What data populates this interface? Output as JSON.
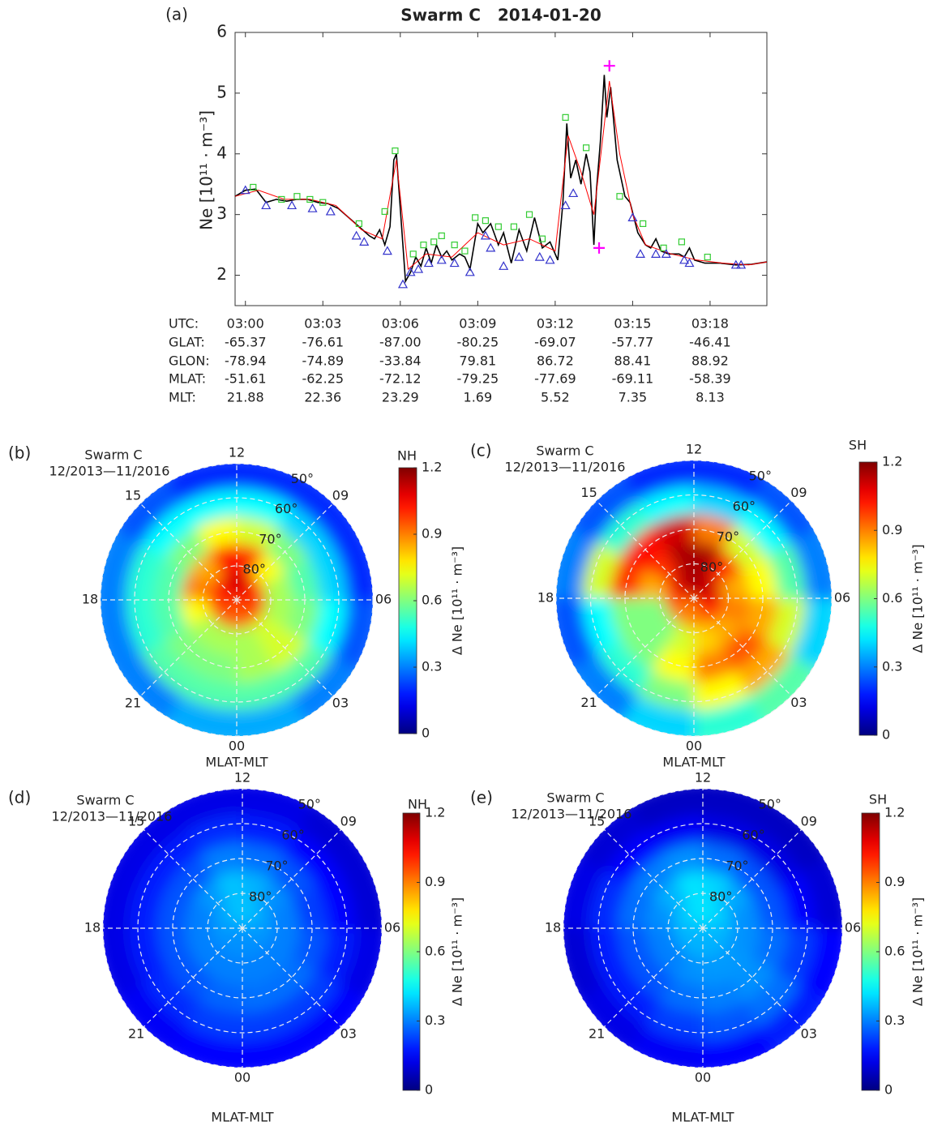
{
  "chart_data": [
    {
      "type": "line",
      "panel_label": "(a)",
      "title": "Swarm C   2014-01-20",
      "ylabel": "Ne [10¹¹ · m⁻³]",
      "xlim": [
        179.6,
        200.2
      ],
      "ylim": [
        1.5,
        6
      ],
      "yticks": [
        2,
        3,
        4,
        5,
        6
      ],
      "xticks": [
        {
          "value": 180,
          "label": "03:00"
        },
        {
          "value": 183,
          "label": "03:03"
        },
        {
          "value": 186,
          "label": "03:06"
        },
        {
          "value": 189,
          "label": "03:09"
        },
        {
          "value": 192,
          "label": "03:12"
        },
        {
          "value": 195,
          "label": "03:15"
        },
        {
          "value": 198,
          "label": "03:18"
        }
      ],
      "table_labels": [
        "UTC:",
        "GLAT:",
        "GLON:",
        "MLAT:",
        "MLT:"
      ],
      "table_rows": [
        [
          "-65.37",
          "-76.61",
          "-87.00",
          "-80.25",
          "-69.07",
          "-57.77",
          "-46.41"
        ],
        [
          "-78.94",
          "-74.89",
          "-33.84",
          "79.81",
          "86.72",
          "88.41",
          "88.92"
        ],
        [
          "-51.61",
          "-62.25",
          "-72.12",
          "-79.25",
          "-77.69",
          "-69.11",
          "-58.39"
        ],
        [
          "21.88",
          "22.36",
          "23.29",
          "1.69",
          "5.52",
          "7.35",
          "8.13"
        ]
      ],
      "series": [
        {
          "color": "#000000",
          "marker": "line",
          "x": [
            179.6,
            180.0,
            180.4,
            180.8,
            181.2,
            181.6,
            182.0,
            182.4,
            182.8,
            183.2,
            183.6,
            184.0,
            184.4,
            184.8,
            185.0,
            185.2,
            185.4,
            185.6,
            185.75,
            185.85,
            185.95,
            186.1,
            186.2,
            186.4,
            186.6,
            186.8,
            187.0,
            187.2,
            187.4,
            187.6,
            187.8,
            188.0,
            188.3,
            188.5,
            188.7,
            189.0,
            189.2,
            189.5,
            189.8,
            190.0,
            190.3,
            190.6,
            190.9,
            191.2,
            191.5,
            191.8,
            192.1,
            192.3,
            192.45,
            192.6,
            192.8,
            193.0,
            193.2,
            193.35,
            193.5,
            193.6,
            193.75,
            193.9,
            194.0,
            194.15,
            194.4,
            194.7,
            194.9,
            195.2,
            195.5,
            195.7,
            195.9,
            196.1,
            196.4,
            196.8,
            197.0,
            197.2,
            197.4,
            197.8,
            198.4,
            199.0,
            199.6,
            200.2
          ],
          "values": [
            3.3,
            3.4,
            3.42,
            3.2,
            3.25,
            3.22,
            3.25,
            3.25,
            3.2,
            3.18,
            3.1,
            2.95,
            2.8,
            2.65,
            2.6,
            2.75,
            2.5,
            2.8,
            3.9,
            4.0,
            3.4,
            2.5,
            1.9,
            2.05,
            2.3,
            2.15,
            2.45,
            2.2,
            2.5,
            2.3,
            2.4,
            2.25,
            2.35,
            2.3,
            2.1,
            2.85,
            2.7,
            2.85,
            2.5,
            2.7,
            2.2,
            2.75,
            2.4,
            2.95,
            2.45,
            2.55,
            2.25,
            3.2,
            4.5,
            3.6,
            3.9,
            3.5,
            4.0,
            3.7,
            2.5,
            3.4,
            4.2,
            5.3,
            4.6,
            5.1,
            3.9,
            3.3,
            3.2,
            2.7,
            2.5,
            2.45,
            2.6,
            2.4,
            2.35,
            2.35,
            2.3,
            2.45,
            2.25,
            2.2,
            2.2,
            2.17,
            2.18,
            2.22
          ]
        },
        {
          "color": "#ff0000",
          "marker": "line",
          "x": [
            179.6,
            180.5,
            181.5,
            182.5,
            183.5,
            184.5,
            185.3,
            185.85,
            186.3,
            187.0,
            188.0,
            189.0,
            190.0,
            191.0,
            192.0,
            192.5,
            193.0,
            193.5,
            194.1,
            194.5,
            195.0,
            195.5,
            196.5,
            197.5,
            198.5,
            199.5,
            200.2
          ],
          "values": [
            3.3,
            3.4,
            3.25,
            3.25,
            3.15,
            2.75,
            2.6,
            3.9,
            2.1,
            2.35,
            2.3,
            2.7,
            2.5,
            2.6,
            2.4,
            4.3,
            3.7,
            3.0,
            5.2,
            4.0,
            3.0,
            2.5,
            2.35,
            2.25,
            2.2,
            2.17,
            2.22
          ]
        },
        {
          "color": "#33cc33",
          "marker": "square",
          "x": [
            180.3,
            181.4,
            182.0,
            182.5,
            183.0,
            184.4,
            185.4,
            185.8,
            186.5,
            186.9,
            187.3,
            187.6,
            188.1,
            188.5,
            188.9,
            189.3,
            189.8,
            190.4,
            191.0,
            191.5,
            192.4,
            193.2,
            194.5,
            195.4,
            196.2,
            196.9,
            197.9
          ],
          "values": [
            3.45,
            3.25,
            3.3,
            3.25,
            3.2,
            2.85,
            3.05,
            4.05,
            2.35,
            2.5,
            2.55,
            2.65,
            2.5,
            2.4,
            2.95,
            2.9,
            2.8,
            2.8,
            3.0,
            2.6,
            4.6,
            4.1,
            3.3,
            2.85,
            2.45,
            2.55,
            2.3
          ]
        },
        {
          "color": "#3333cc",
          "marker": "triangle",
          "x": [
            180.0,
            180.8,
            181.8,
            182.6,
            183.3,
            184.3,
            184.6,
            185.5,
            186.1,
            186.4,
            186.7,
            187.1,
            187.6,
            188.1,
            188.7,
            189.3,
            189.5,
            190.0,
            190.6,
            191.4,
            191.8,
            192.4,
            192.7,
            195.0,
            195.3,
            195.9,
            196.3,
            197.0,
            197.2,
            199.0,
            199.2
          ],
          "values": [
            3.4,
            3.15,
            3.15,
            3.1,
            3.05,
            2.65,
            2.55,
            2.4,
            1.85,
            2.05,
            2.1,
            2.2,
            2.25,
            2.2,
            2.05,
            2.65,
            2.45,
            2.15,
            2.3,
            2.3,
            2.25,
            3.15,
            3.35,
            2.95,
            2.35,
            2.35,
            2.35,
            2.25,
            2.2,
            2.17,
            2.17
          ]
        },
        {
          "color": "#ff00ff",
          "marker": "plus",
          "x": [
            194.1,
            193.7
          ],
          "values": [
            5.45,
            2.45
          ]
        }
      ]
    },
    {
      "type": "polar_heatmap",
      "panel_label": "(b)",
      "title": "Swarm C",
      "subtitle": "12/2013—11/2016",
      "hemisphere": "NH",
      "xlabel": "MLAT-MLT",
      "theta_ticks": [
        12,
        {
          "value": 9,
          "label": "09"
        },
        {
          "value": 6,
          "label": "06"
        },
        {
          "value": 3,
          "label": "03"
        },
        {
          "value": 0,
          "label": "00"
        },
        21,
        18,
        15
      ],
      "r_ticks": [
        {
          "value": 80,
          "label": "80°"
        },
        {
          "value": 70,
          "label": "70°"
        },
        {
          "value": 60,
          "label": "60°"
        },
        {
          "value": 50,
          "label": "50°"
        }
      ],
      "rlim": [
        90,
        50
      ],
      "mlat_bins": [
        50,
        58,
        66,
        74,
        82,
        90
      ],
      "mlt_bins": [
        0,
        2,
        4,
        6,
        8,
        10,
        12,
        14,
        16,
        18,
        20,
        22,
        24
      ],
      "values": [
        [
          0.35,
          0.3,
          0.25,
          0.2,
          0.2,
          0.2,
          0.2,
          0.25,
          0.3,
          0.3,
          0.3,
          0.35
        ],
        [
          0.55,
          0.55,
          0.45,
          0.4,
          0.4,
          0.45,
          0.45,
          0.45,
          0.5,
          0.5,
          0.55,
          0.55
        ],
        [
          0.65,
          0.7,
          0.6,
          0.55,
          0.6,
          0.7,
          0.75,
          0.6,
          0.55,
          0.55,
          0.6,
          0.6
        ],
        [
          0.65,
          0.7,
          0.65,
          0.65,
          0.75,
          1.0,
          1.05,
          0.85,
          0.9,
          0.75,
          0.65,
          0.65
        ],
        [
          0.95,
          0.95,
          1.0,
          1.0,
          1.05,
          1.1,
          1.1,
          1.05,
          1.0,
          1.0,
          0.95,
          0.95
        ]
      ],
      "clim": [
        0,
        1.2
      ],
      "cticks": [
        0,
        0.3,
        0.6,
        0.9,
        1.2
      ],
      "colorbar_label": "Δ Ne [10¹¹ · m⁻³]",
      "colormap": "jet"
    },
    {
      "type": "polar_heatmap",
      "panel_label": "(c)",
      "title": "Swarm C",
      "subtitle": "12/2013—11/2016",
      "hemisphere": "SH",
      "xlabel": "MLAT-MLT",
      "theta_ticks": [
        12,
        {
          "value": 9,
          "label": "09"
        },
        {
          "value": 6,
          "label": "06"
        },
        {
          "value": 3,
          "label": "03"
        },
        {
          "value": 0,
          "label": "00"
        },
        21,
        18,
        15
      ],
      "r_ticks": [
        {
          "value": 80,
          "label": "80°"
        },
        {
          "value": 70,
          "label": "70°"
        },
        {
          "value": 60,
          "label": "60°"
        },
        {
          "value": 50,
          "label": "50°"
        }
      ],
      "rlim": [
        90,
        50
      ],
      "mlat_bins": [
        50,
        58,
        66,
        74,
        82,
        90
      ],
      "mlt_bins": [
        0,
        2,
        4,
        6,
        8,
        10,
        12,
        14,
        16,
        18,
        20,
        22,
        24
      ],
      "values": [
        [
          0.5,
          0.55,
          0.4,
          0.3,
          0.25,
          0.2,
          0.2,
          0.25,
          0.3,
          0.25,
          0.3,
          0.4
        ],
        [
          0.75,
          0.85,
          0.7,
          0.55,
          0.45,
          0.4,
          0.45,
          0.5,
          0.7,
          0.45,
          0.5,
          0.6
        ],
        [
          0.9,
          0.95,
          0.85,
          0.75,
          0.7,
          0.9,
          1.1,
          1.05,
          1.0,
          0.6,
          0.6,
          0.75
        ],
        [
          0.8,
          0.85,
          0.9,
          0.85,
          1.0,
          1.15,
          1.15,
          1.0,
          0.85,
          0.6,
          0.6,
          0.7
        ],
        [
          0.9,
          1.0,
          1.05,
          1.1,
          1.1,
          1.15,
          1.15,
          1.1,
          1.0,
          0.95,
          0.9,
          0.9
        ]
      ],
      "clim": [
        0,
        1.2
      ],
      "cticks": [
        0,
        0.3,
        0.6,
        0.9,
        1.2
      ],
      "colorbar_label": "Δ Ne [10¹¹ · m⁻³]",
      "colormap": "jet"
    },
    {
      "type": "polar_heatmap",
      "panel_label": "(d)",
      "title": "Swarm C",
      "subtitle": "12/2013—11/2016",
      "hemisphere": "NH",
      "xlabel": "MLAT-MLT",
      "theta_ticks": [
        12,
        {
          "value": 9,
          "label": "09"
        },
        {
          "value": 6,
          "label": "06"
        },
        {
          "value": 3,
          "label": "03"
        },
        {
          "value": 0,
          "label": "00"
        },
        21,
        18,
        15
      ],
      "r_ticks": [
        {
          "value": 80,
          "label": "80°"
        },
        {
          "value": 70,
          "label": "70°"
        },
        {
          "value": 60,
          "label": "60°"
        },
        {
          "value": 50,
          "label": "50°"
        }
      ],
      "rlim": [
        90,
        50
      ],
      "mlat_bins": [
        50,
        58,
        66,
        74,
        82,
        90
      ],
      "mlt_bins": [
        0,
        2,
        4,
        6,
        8,
        10,
        12,
        14,
        16,
        18,
        20,
        22,
        24
      ],
      "values": [
        [
          0.15,
          0.15,
          0.12,
          0.1,
          0.1,
          0.12,
          0.12,
          0.12,
          0.12,
          0.12,
          0.14,
          0.15
        ],
        [
          0.22,
          0.22,
          0.18,
          0.15,
          0.15,
          0.18,
          0.2,
          0.18,
          0.18,
          0.18,
          0.2,
          0.22
        ],
        [
          0.28,
          0.28,
          0.25,
          0.22,
          0.25,
          0.28,
          0.3,
          0.25,
          0.25,
          0.25,
          0.25,
          0.27
        ],
        [
          0.3,
          0.3,
          0.3,
          0.3,
          0.32,
          0.36,
          0.38,
          0.33,
          0.3,
          0.3,
          0.3,
          0.3
        ],
        [
          0.32,
          0.32,
          0.33,
          0.34,
          0.36,
          0.38,
          0.38,
          0.36,
          0.34,
          0.33,
          0.32,
          0.32
        ]
      ],
      "clim": [
        0,
        1.2
      ],
      "cticks": [
        0,
        0.3,
        0.6,
        0.9,
        1.2
      ],
      "colorbar_label": "Δ Ne [10¹¹ · m⁻³]",
      "colormap": "jet"
    },
    {
      "type": "polar_heatmap",
      "panel_label": "(e)",
      "title": "Swarm C",
      "subtitle": "12/2013—11/2016",
      "hemisphere": "SH",
      "xlabel": "MLAT-MLT",
      "theta_ticks": [
        12,
        {
          "value": 9,
          "label": "09"
        },
        {
          "value": 6,
          "label": "06"
        },
        {
          "value": 3,
          "label": "03"
        },
        {
          "value": 0,
          "label": "00"
        },
        21,
        18,
        15
      ],
      "r_ticks": [
        {
          "value": 80,
          "label": "80°"
        },
        {
          "value": 70,
          "label": "70°"
        },
        {
          "value": 60,
          "label": "60°"
        },
        {
          "value": 50,
          "label": "50°"
        }
      ],
      "rlim": [
        90,
        50
      ],
      "mlat_bins": [
        50,
        58,
        66,
        74,
        82,
        90
      ],
      "mlt_bins": [
        0,
        2,
        4,
        6,
        8,
        10,
        12,
        14,
        16,
        18,
        20,
        22,
        24
      ],
      "values": [
        [
          0.15,
          0.18,
          0.15,
          0.1,
          0.08,
          0.08,
          0.08,
          0.1,
          0.12,
          0.1,
          0.12,
          0.14
        ],
        [
          0.25,
          0.28,
          0.22,
          0.15,
          0.12,
          0.12,
          0.14,
          0.15,
          0.2,
          0.18,
          0.18,
          0.22
        ],
        [
          0.3,
          0.32,
          0.28,
          0.25,
          0.25,
          0.28,
          0.32,
          0.3,
          0.28,
          0.25,
          0.25,
          0.28
        ],
        [
          0.33,
          0.33,
          0.32,
          0.32,
          0.35,
          0.4,
          0.42,
          0.36,
          0.32,
          0.3,
          0.3,
          0.32
        ],
        [
          0.36,
          0.36,
          0.36,
          0.38,
          0.4,
          0.42,
          0.42,
          0.4,
          0.38,
          0.36,
          0.36,
          0.36
        ]
      ],
      "clim": [
        0,
        1.2
      ],
      "cticks": [
        0,
        0.3,
        0.6,
        0.9,
        1.2
      ],
      "colorbar_label": "Δ Ne [10¹¹ · m⁻³]",
      "colormap": "jet"
    }
  ]
}
